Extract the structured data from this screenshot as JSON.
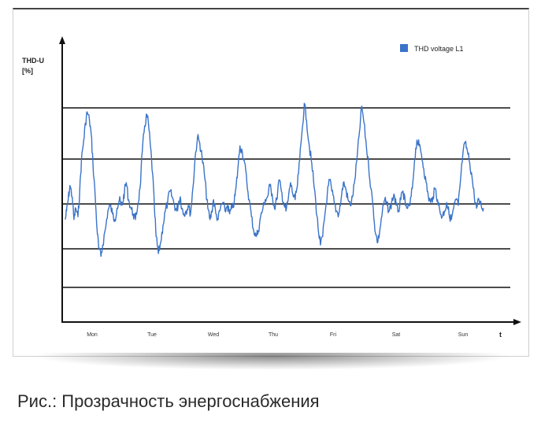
{
  "chart_data": {
    "type": "line",
    "ylabel_line1": "THD-U",
    "ylabel_line2": "[%]",
    "xlabel": "t",
    "categories": [
      "Mon",
      "Tue",
      "Wed",
      "Thu",
      "Fri",
      "Sat",
      "Sun"
    ],
    "grid": "horizontal",
    "legend_position": "top-right",
    "series": [
      {
        "name": "THD voltage L1",
        "color": "#3a73c9",
        "x": [
          0.0,
          0.02,
          0.05,
          0.08,
          0.12,
          0.15,
          0.18,
          0.22,
          0.25,
          0.28,
          0.32,
          0.35,
          0.38,
          0.42,
          0.45,
          0.48,
          0.52,
          0.55,
          0.58,
          0.62,
          0.65,
          0.7,
          0.74,
          0.78,
          0.82,
          0.86,
          0.9,
          0.94,
          0.97,
          1.0,
          1.03,
          1.06,
          1.1,
          1.14,
          1.18,
          1.22,
          1.26,
          1.3,
          1.34,
          1.38,
          1.42,
          1.45,
          1.48,
          1.52,
          1.55,
          1.58,
          1.62,
          1.66,
          1.7,
          1.74,
          1.78,
          1.82,
          1.86,
          1.9,
          1.94,
          1.97,
          2.0,
          2.03,
          2.06,
          2.1,
          2.14,
          2.18,
          2.22,
          2.26,
          2.3,
          2.34,
          2.38,
          2.42,
          2.45,
          2.48,
          2.52,
          2.55,
          2.58,
          2.62,
          2.66,
          2.7,
          2.74,
          2.78,
          2.82,
          2.86,
          2.9,
          2.94,
          2.97,
          3.0,
          3.04,
          3.08,
          3.12,
          3.16,
          3.2,
          3.24,
          3.28,
          3.32,
          3.36,
          3.4,
          3.44,
          3.48,
          3.52,
          3.56,
          3.6,
          3.64,
          3.68,
          3.72,
          3.76,
          3.8,
          3.84,
          3.88,
          3.92,
          3.96,
          4.0,
          4.04,
          4.08,
          4.12,
          4.16,
          4.2,
          4.24,
          4.28,
          4.32,
          4.36,
          4.4,
          4.44,
          4.48,
          4.52,
          4.56,
          4.6,
          4.64,
          4.68,
          4.72,
          4.76,
          4.8,
          4.84,
          4.88,
          4.92,
          4.96,
          5.0,
          5.04,
          5.08,
          5.12,
          5.16,
          5.2,
          5.24,
          5.28,
          5.32,
          5.36,
          5.4,
          5.44,
          5.48,
          5.52,
          5.56,
          5.6,
          5.64,
          5.68,
          5.72,
          5.76,
          5.8,
          5.84,
          5.88,
          5.92,
          5.96,
          6.0,
          6.04,
          6.08,
          6.12,
          6.16,
          6.2,
          6.24,
          6.28,
          6.32,
          6.36,
          6.4,
          6.44,
          6.48,
          6.52,
          6.56,
          6.6,
          6.64,
          6.68,
          6.72,
          6.76,
          6.8,
          6.84,
          6.88,
          6.92,
          6.96,
          7.0,
          7.04,
          7.08,
          7.12,
          7.16,
          7.2,
          7.24,
          7.28
        ],
        "y": [
          2.2,
          2.5,
          2.9,
          3.4,
          3.0,
          2.2,
          2.6,
          2.3,
          3.2,
          4.3,
          5.0,
          5.6,
          6.0,
          5.7,
          5.2,
          4.2,
          3.0,
          1.9,
          1.2,
          0.9,
          1.3,
          1.9,
          2.5,
          2.7,
          2.4,
          2.2,
          2.6,
          2.9,
          2.7,
          2.8,
          3.2,
          3.5,
          2.9,
          2.6,
          2.4,
          2.2,
          2.7,
          3.3,
          4.6,
          5.5,
          5.9,
          5.5,
          4.8,
          3.8,
          2.6,
          1.6,
          1.0,
          1.4,
          2.0,
          2.5,
          2.8,
          3.2,
          3.0,
          2.7,
          2.5,
          2.8,
          3.0,
          2.6,
          2.4,
          2.5,
          2.7,
          2.4,
          3.3,
          4.4,
          5.1,
          4.9,
          4.4,
          3.8,
          3.2,
          2.6,
          2.2,
          2.5,
          2.9,
          2.4,
          2.2,
          2.6,
          2.8,
          2.5,
          2.7,
          2.4,
          2.6,
          2.8,
          3.3,
          3.9,
          4.8,
          4.6,
          4.2,
          3.5,
          2.9,
          2.3,
          1.8,
          1.6,
          1.8,
          2.3,
          2.6,
          2.9,
          3.0,
          3.4,
          3.1,
          2.6,
          2.9,
          3.6,
          3.2,
          2.8,
          2.5,
          2.9,
          3.5,
          3.1,
          2.9,
          3.4,
          4.3,
          5.3,
          6.3,
          5.7,
          4.9,
          4.3,
          3.6,
          2.8,
          1.9,
          1.3,
          1.6,
          2.4,
          3.1,
          3.6,
          3.2,
          2.8,
          2.5,
          2.4,
          2.9,
          3.5,
          3.3,
          2.9,
          2.7,
          3.0,
          3.6,
          4.4,
          5.3,
          6.2,
          5.6,
          4.8,
          4.1,
          3.3,
          2.6,
          1.7,
          1.4,
          1.9,
          2.5,
          2.9,
          2.7,
          2.5,
          2.8,
          3.1,
          2.7,
          2.5,
          2.9,
          3.2,
          2.7,
          2.6,
          2.7,
          3.3,
          4.3,
          5.0,
          4.8,
          4.5,
          4.0,
          3.5,
          3.0,
          2.8,
          3.0,
          3.3,
          2.9,
          2.5,
          2.3,
          2.5,
          2.8,
          2.4,
          2.2,
          2.6,
          2.9,
          2.7,
          3.6,
          4.5,
          4.9,
          4.6,
          4.2,
          3.7,
          3.0,
          2.6,
          2.9,
          2.7,
          2.6
        ]
      }
    ]
  },
  "legend": {
    "label": "THD voltage L1",
    "color": "#3a73c9"
  },
  "caption": "Рис.: Прозрачность энергоснабжения"
}
